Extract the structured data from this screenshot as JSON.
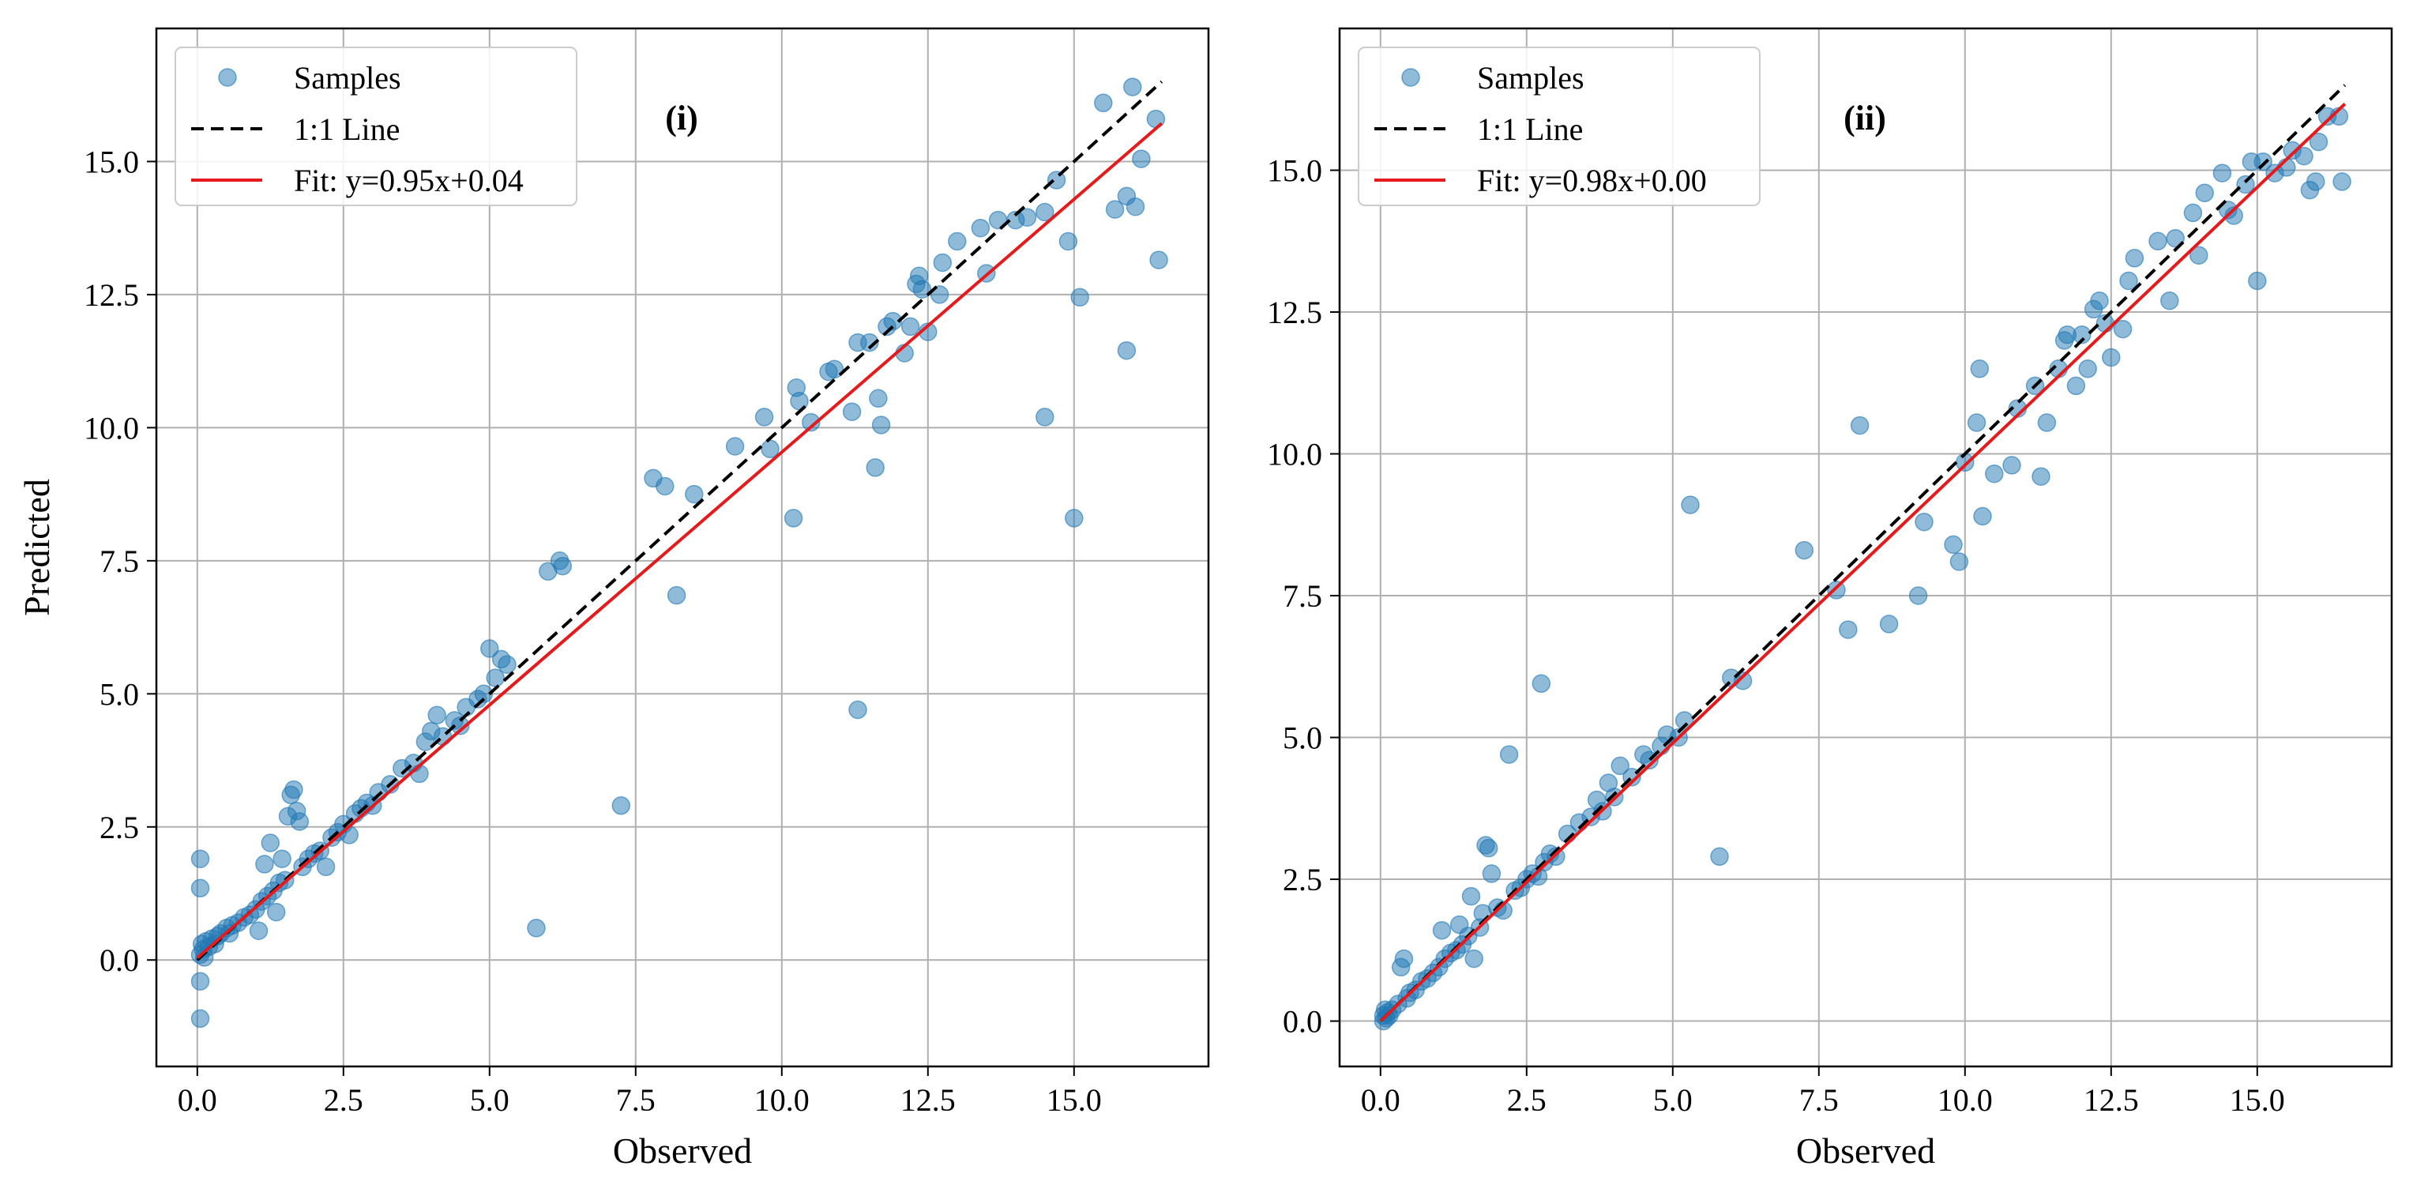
{
  "colors": {
    "points": "#1f77b4",
    "identity": "#000000",
    "fit": "#e41a1c",
    "grid": "#b0b0b0"
  },
  "chart_data": [
    {
      "type": "scatter",
      "panel_label": "(i)",
      "xlabel": "Observed",
      "ylabel": "Predicted",
      "xlim": [
        -0.7,
        17.3
      ],
      "ylim": [
        -2.0,
        17.5
      ],
      "xticks": [
        0.0,
        2.5,
        5.0,
        7.5,
        10.0,
        12.5,
        15.0
      ],
      "xtick_labels": [
        "0.0",
        "2.5",
        "5.0",
        "7.5",
        "10.0",
        "12.5",
        "15.0"
      ],
      "yticks": [
        0.0,
        2.5,
        5.0,
        7.5,
        10.0,
        12.5,
        15.0
      ],
      "ytick_labels": [
        "0.0",
        "2.5",
        "5.0",
        "7.5",
        "10.0",
        "12.5",
        "15.0"
      ],
      "grid": true,
      "legend_position": "top-left",
      "legend": {
        "samples": "Samples",
        "identity": "1:1 Line",
        "fit": "Fit: y=0.95x+0.04"
      },
      "fit": {
        "slope": 0.95,
        "intercept": 0.04,
        "x_range": [
          0.0,
          16.5
        ]
      },
      "identity_range": [
        0.0,
        16.5
      ],
      "points": [
        [
          0.05,
          1.9
        ],
        [
          0.05,
          1.35
        ],
        [
          0.05,
          -0.4
        ],
        [
          0.05,
          -1.1
        ],
        [
          0.05,
          0.1
        ],
        [
          0.08,
          0.3
        ],
        [
          0.1,
          0.2
        ],
        [
          0.12,
          0.05
        ],
        [
          0.15,
          0.35
        ],
        [
          0.2,
          0.25
        ],
        [
          0.25,
          0.4
        ],
        [
          0.3,
          0.3
        ],
        [
          0.35,
          0.45
        ],
        [
          0.4,
          0.5
        ],
        [
          0.5,
          0.6
        ],
        [
          0.55,
          0.5
        ],
        [
          0.6,
          0.65
        ],
        [
          0.7,
          0.7
        ],
        [
          0.8,
          0.8
        ],
        [
          0.9,
          0.85
        ],
        [
          1.0,
          0.95
        ],
        [
          1.05,
          0.55
        ],
        [
          1.1,
          1.1
        ],
        [
          1.15,
          1.8
        ],
        [
          1.2,
          1.2
        ],
        [
          1.25,
          2.2
        ],
        [
          1.3,
          1.3
        ],
        [
          1.35,
          0.9
        ],
        [
          1.4,
          1.45
        ],
        [
          1.45,
          1.9
        ],
        [
          1.5,
          1.5
        ],
        [
          1.55,
          2.7
        ],
        [
          1.6,
          3.1
        ],
        [
          1.65,
          3.2
        ],
        [
          1.7,
          2.8
        ],
        [
          1.75,
          2.6
        ],
        [
          1.8,
          1.75
        ],
        [
          1.9,
          1.9
        ],
        [
          2.0,
          2.0
        ],
        [
          2.1,
          2.05
        ],
        [
          2.2,
          1.75
        ],
        [
          2.3,
          2.3
        ],
        [
          2.4,
          2.4
        ],
        [
          2.5,
          2.55
        ],
        [
          2.6,
          2.35
        ],
        [
          2.7,
          2.75
        ],
        [
          2.8,
          2.85
        ],
        [
          2.9,
          2.95
        ],
        [
          3.0,
          2.9
        ],
        [
          3.1,
          3.15
        ],
        [
          3.3,
          3.3
        ],
        [
          3.5,
          3.6
        ],
        [
          3.7,
          3.7
        ],
        [
          3.8,
          3.5
        ],
        [
          3.9,
          4.1
        ],
        [
          4.0,
          4.3
        ],
        [
          4.1,
          4.6
        ],
        [
          4.2,
          4.2
        ],
        [
          4.4,
          4.5
        ],
        [
          4.5,
          4.4
        ],
        [
          4.6,
          4.75
        ],
        [
          4.8,
          4.9
        ],
        [
          4.9,
          5.0
        ],
        [
          5.0,
          5.85
        ],
        [
          5.1,
          5.3
        ],
        [
          5.2,
          5.65
        ],
        [
          5.3,
          5.55
        ],
        [
          5.8,
          0.6
        ],
        [
          6.0,
          7.3
        ],
        [
          6.2,
          7.5
        ],
        [
          6.25,
          7.4
        ],
        [
          7.25,
          2.9
        ],
        [
          7.8,
          9.05
        ],
        [
          8.0,
          8.9
        ],
        [
          8.2,
          6.85
        ],
        [
          8.5,
          8.75
        ],
        [
          9.2,
          9.65
        ],
        [
          9.7,
          10.2
        ],
        [
          9.8,
          9.6
        ],
        [
          10.2,
          8.3
        ],
        [
          10.25,
          10.75
        ],
        [
          10.3,
          10.5
        ],
        [
          10.5,
          10.1
        ],
        [
          10.8,
          11.05
        ],
        [
          10.9,
          11.1
        ],
        [
          11.2,
          10.3
        ],
        [
          11.3,
          11.6
        ],
        [
          11.3,
          4.7
        ],
        [
          11.5,
          11.6
        ],
        [
          11.6,
          9.25
        ],
        [
          11.65,
          10.55
        ],
        [
          11.7,
          10.05
        ],
        [
          11.8,
          11.9
        ],
        [
          11.9,
          12.0
        ],
        [
          12.1,
          11.4
        ],
        [
          12.2,
          11.9
        ],
        [
          12.3,
          12.7
        ],
        [
          12.35,
          12.85
        ],
        [
          12.4,
          12.6
        ],
        [
          12.5,
          11.8
        ],
        [
          12.7,
          12.5
        ],
        [
          12.75,
          13.1
        ],
        [
          13.0,
          13.5
        ],
        [
          13.4,
          13.75
        ],
        [
          13.5,
          12.9
        ],
        [
          13.7,
          13.9
        ],
        [
          14.0,
          13.9
        ],
        [
          14.2,
          13.95
        ],
        [
          14.5,
          14.05
        ],
        [
          14.5,
          10.2
        ],
        [
          14.7,
          14.65
        ],
        [
          14.9,
          13.5
        ],
        [
          15.0,
          8.3
        ],
        [
          15.1,
          12.45
        ],
        [
          15.5,
          16.1
        ],
        [
          15.7,
          14.1
        ],
        [
          15.9,
          14.35
        ],
        [
          15.9,
          11.45
        ],
        [
          16.0,
          16.4
        ],
        [
          16.05,
          14.15
        ],
        [
          16.15,
          15.05
        ],
        [
          16.4,
          15.8
        ],
        [
          16.45,
          13.15
        ]
      ]
    },
    {
      "type": "scatter",
      "panel_label": "(ii)",
      "xlabel": "Observed",
      "ylabel": "",
      "xlim": [
        -0.7,
        17.3
      ],
      "ylim": [
        -0.8,
        17.5
      ],
      "xticks": [
        0.0,
        2.5,
        5.0,
        7.5,
        10.0,
        12.5,
        15.0
      ],
      "xtick_labels": [
        "0.0",
        "2.5",
        "5.0",
        "7.5",
        "10.0",
        "12.5",
        "15.0"
      ],
      "yticks": [
        0.0,
        2.5,
        5.0,
        7.5,
        10.0,
        12.5,
        15.0
      ],
      "ytick_labels": [
        "0.0",
        "2.5",
        "5.0",
        "7.5",
        "10.0",
        "12.5",
        "15.0"
      ],
      "grid": true,
      "legend_position": "top-left",
      "legend": {
        "samples": "Samples",
        "identity": "1:1 Line",
        "fit": "Fit: y=0.98x+0.00"
      },
      "fit": {
        "slope": 0.98,
        "intercept": 0.0,
        "x_range": [
          0.0,
          16.5
        ]
      },
      "identity_range": [
        0.0,
        16.5
      ],
      "points": [
        [
          0.05,
          0.0
        ],
        [
          0.05,
          0.1
        ],
        [
          0.08,
          0.2
        ],
        [
          0.1,
          0.05
        ],
        [
          0.12,
          0.15
        ],
        [
          0.15,
          0.1
        ],
        [
          0.2,
          0.2
        ],
        [
          0.3,
          0.3
        ],
        [
          0.35,
          0.95
        ],
        [
          0.4,
          1.1
        ],
        [
          0.45,
          0.4
        ],
        [
          0.5,
          0.5
        ],
        [
          0.6,
          0.55
        ],
        [
          0.7,
          0.7
        ],
        [
          0.8,
          0.75
        ],
        [
          0.9,
          0.85
        ],
        [
          1.0,
          0.95
        ],
        [
          1.05,
          1.6
        ],
        [
          1.1,
          1.1
        ],
        [
          1.2,
          1.2
        ],
        [
          1.3,
          1.25
        ],
        [
          1.35,
          1.7
        ],
        [
          1.4,
          1.35
        ],
        [
          1.5,
          1.5
        ],
        [
          1.55,
          2.2
        ],
        [
          1.6,
          1.1
        ],
        [
          1.7,
          1.65
        ],
        [
          1.75,
          1.9
        ],
        [
          1.8,
          3.1
        ],
        [
          1.85,
          3.05
        ],
        [
          1.9,
          2.6
        ],
        [
          2.0,
          2.0
        ],
        [
          2.1,
          1.95
        ],
        [
          2.2,
          4.7
        ],
        [
          2.3,
          2.3
        ],
        [
          2.4,
          2.35
        ],
        [
          2.5,
          2.5
        ],
        [
          2.6,
          2.6
        ],
        [
          2.7,
          2.55
        ],
        [
          2.75,
          5.95
        ],
        [
          2.8,
          2.8
        ],
        [
          2.9,
          2.95
        ],
        [
          3.0,
          2.9
        ],
        [
          3.2,
          3.3
        ],
        [
          3.4,
          3.5
        ],
        [
          3.6,
          3.6
        ],
        [
          3.7,
          3.9
        ],
        [
          3.8,
          3.7
        ],
        [
          3.9,
          4.2
        ],
        [
          4.0,
          3.95
        ],
        [
          4.1,
          4.5
        ],
        [
          4.3,
          4.3
        ],
        [
          4.5,
          4.7
        ],
        [
          4.6,
          4.6
        ],
        [
          4.8,
          4.85
        ],
        [
          4.9,
          5.05
        ],
        [
          5.1,
          5.0
        ],
        [
          5.2,
          5.3
        ],
        [
          5.3,
          9.1
        ],
        [
          5.8,
          2.9
        ],
        [
          6.0,
          6.05
        ],
        [
          6.2,
          6.0
        ],
        [
          7.25,
          8.3
        ],
        [
          7.8,
          7.6
        ],
        [
          8.0,
          6.9
        ],
        [
          8.2,
          10.5
        ],
        [
          8.7,
          7.0
        ],
        [
          9.2,
          7.5
        ],
        [
          9.3,
          8.8
        ],
        [
          9.8,
          8.4
        ],
        [
          9.9,
          8.1
        ],
        [
          10.0,
          9.85
        ],
        [
          10.2,
          10.55
        ],
        [
          10.25,
          11.5
        ],
        [
          10.3,
          8.9
        ],
        [
          10.5,
          9.65
        ],
        [
          10.8,
          9.8
        ],
        [
          10.9,
          10.8
        ],
        [
          11.2,
          11.2
        ],
        [
          11.3,
          9.6
        ],
        [
          11.4,
          10.55
        ],
        [
          11.6,
          11.5
        ],
        [
          11.7,
          12.0
        ],
        [
          11.75,
          12.1
        ],
        [
          11.9,
          11.2
        ],
        [
          12.0,
          12.1
        ],
        [
          12.1,
          11.5
        ],
        [
          12.2,
          12.55
        ],
        [
          12.3,
          12.7
        ],
        [
          12.4,
          12.3
        ],
        [
          12.5,
          11.7
        ],
        [
          12.7,
          12.2
        ],
        [
          12.8,
          13.05
        ],
        [
          12.9,
          13.45
        ],
        [
          13.3,
          13.75
        ],
        [
          13.5,
          12.7
        ],
        [
          13.6,
          13.8
        ],
        [
          13.9,
          14.25
        ],
        [
          14.0,
          13.5
        ],
        [
          14.1,
          14.6
        ],
        [
          14.4,
          14.95
        ],
        [
          14.5,
          14.3
        ],
        [
          14.6,
          14.2
        ],
        [
          14.8,
          14.75
        ],
        [
          14.9,
          15.15
        ],
        [
          15.0,
          13.05
        ],
        [
          15.1,
          15.15
        ],
        [
          15.3,
          14.95
        ],
        [
          15.5,
          15.05
        ],
        [
          15.6,
          15.35
        ],
        [
          15.8,
          15.25
        ],
        [
          15.9,
          14.65
        ],
        [
          16.0,
          14.8
        ],
        [
          16.05,
          15.5
        ],
        [
          16.2,
          15.95
        ],
        [
          16.4,
          15.95
        ],
        [
          16.45,
          14.8
        ]
      ]
    }
  ]
}
